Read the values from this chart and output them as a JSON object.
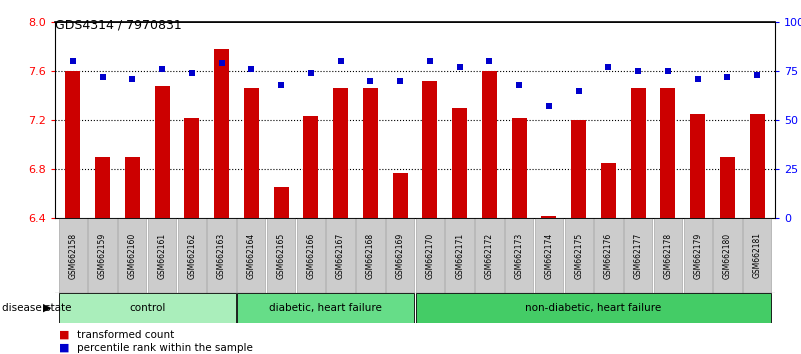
{
  "title": "GDS4314 / 7970831",
  "samples": [
    "GSM662158",
    "GSM662159",
    "GSM662160",
    "GSM662161",
    "GSM662162",
    "GSM662163",
    "GSM662164",
    "GSM662165",
    "GSM662166",
    "GSM662167",
    "GSM662168",
    "GSM662169",
    "GSM662170",
    "GSM662171",
    "GSM662172",
    "GSM662173",
    "GSM662174",
    "GSM662175",
    "GSM662176",
    "GSM662177",
    "GSM662178",
    "GSM662179",
    "GSM662180",
    "GSM662181"
  ],
  "bar_values": [
    7.6,
    6.9,
    6.9,
    7.48,
    7.22,
    7.78,
    7.46,
    6.65,
    7.23,
    7.46,
    7.46,
    6.77,
    7.52,
    7.3,
    7.6,
    7.22,
    6.42,
    7.2,
    6.85,
    7.46,
    7.46,
    7.25,
    6.9,
    7.25
  ],
  "dot_values": [
    80,
    72,
    71,
    76,
    74,
    79,
    76,
    68,
    74,
    80,
    70,
    70,
    80,
    77,
    80,
    68,
    57,
    65,
    77,
    75,
    75,
    71,
    72,
    73
  ],
  "ylim_left": [
    6.4,
    8.0
  ],
  "ylim_right": [
    0,
    100
  ],
  "yticks_left": [
    6.4,
    6.8,
    7.2,
    7.6,
    8.0
  ],
  "yticks_right": [
    0,
    25,
    50,
    75,
    100
  ],
  "ytick_labels_right": [
    "0",
    "25",
    "50",
    "75",
    "100%"
  ],
  "bar_color": "#CC0000",
  "dot_color": "#0000CC",
  "group_defs": [
    {
      "label": "control",
      "start": 0,
      "end": 5,
      "color": "#AAEEBB"
    },
    {
      "label": "diabetic, heart failure",
      "start": 6,
      "end": 11,
      "color": "#66DD88"
    },
    {
      "label": "non-diabetic, heart failure",
      "start": 12,
      "end": 23,
      "color": "#44CC66"
    }
  ],
  "disease_state_label": "disease state",
  "xtick_bg_color": "#C8C8C8"
}
